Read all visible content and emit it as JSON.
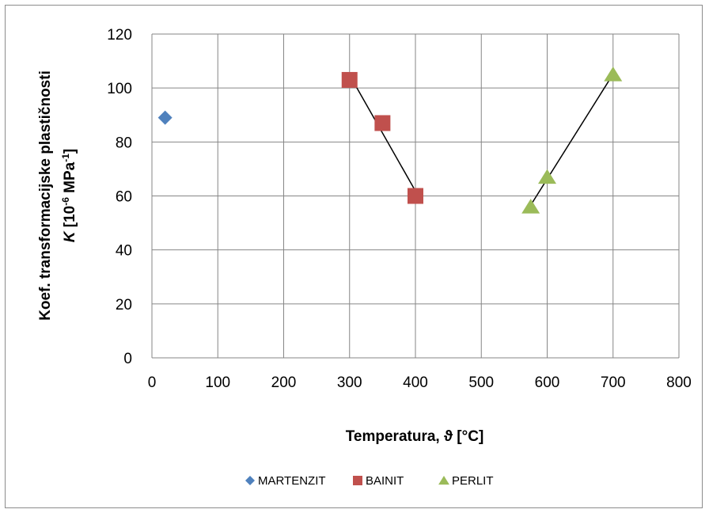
{
  "chart_data": {
    "type": "scatter",
    "xlabel": "Temperatura, ϑ [°C]",
    "ylabel_line1": "Koef. transformacijske plastičnosti",
    "ylabel_line2_prefix": "K",
    "ylabel_line2_units": " [10",
    "ylabel_line2_exp1": "-6",
    "ylabel_line2_mid": " MPa",
    "ylabel_line2_exp2": "-1",
    "ylabel_line2_end": "]",
    "xlim": [
      0,
      800
    ],
    "ylim": [
      0,
      120
    ],
    "x_ticks": [
      "0",
      "100",
      "200",
      "300",
      "400",
      "500",
      "600",
      "700",
      "800"
    ],
    "y_ticks": [
      "0",
      "20",
      "40",
      "60",
      "80",
      "100",
      "120"
    ],
    "grid": true,
    "legend_position": "bottom",
    "series": [
      {
        "name": "MARTENZIT",
        "marker": "diamond",
        "color": "#4F81BD",
        "points": [
          [
            20,
            89
          ]
        ],
        "trendline": false
      },
      {
        "name": "BAINIT",
        "marker": "square",
        "color": "#C0504D",
        "points": [
          [
            300,
            103
          ],
          [
            350,
            87
          ],
          [
            400,
            60
          ]
        ],
        "trendline": true
      },
      {
        "name": "PERLIT",
        "marker": "triangle",
        "color": "#9BBB59",
        "points": [
          [
            575,
            56
          ],
          [
            600,
            67
          ],
          [
            700,
            105
          ]
        ],
        "trendline": true
      }
    ]
  }
}
